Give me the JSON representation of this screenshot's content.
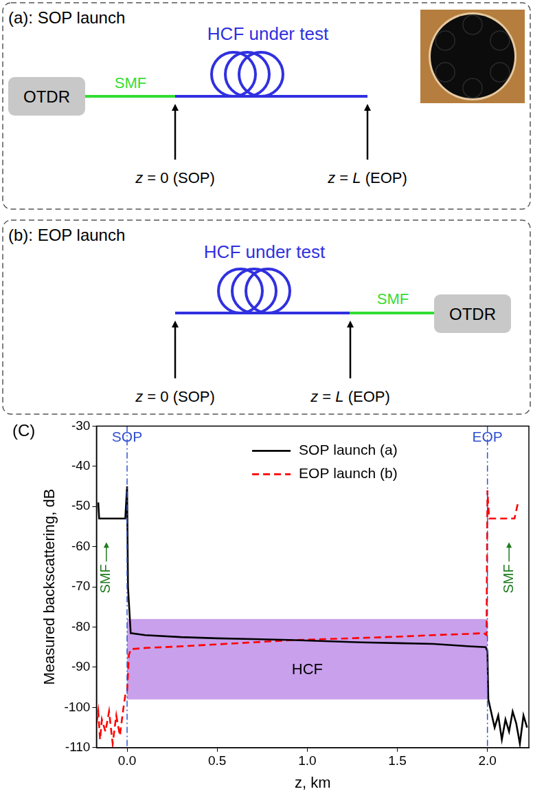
{
  "panels": [
    {
      "label": "(a): SOP launch",
      "device": "OTDR",
      "lead_fiber": "SMF",
      "fiber": "HCF under test",
      "start": "z = 0 (SOP)",
      "end": "z = L (EOP)"
    },
    {
      "label": "(b): EOP launch",
      "device": "OTDR",
      "lead_fiber": "SMF",
      "fiber": "HCF under test",
      "start": "z = 0 (SOP)",
      "end": "z = L (EOP)"
    }
  ],
  "chart_data": {
    "type": "line",
    "panel_label": "(C)",
    "x_label": "z, km",
    "y_label": "Measured backscattering, dB",
    "xlim": [
      -0.17,
      2.23
    ],
    "xticks": [
      {
        "value": 0,
        "label": "0.0"
      },
      0.5,
      {
        "value": 1,
        "label": "1.0"
      },
      1.5,
      {
        "value": 2,
        "label": "2.0"
      }
    ],
    "ylim": [
      -110,
      -30
    ],
    "yticks": [
      -110,
      -100,
      -90,
      -80,
      -70,
      -60,
      -50,
      -40,
      -30
    ],
    "grid": false,
    "legend": "upper center",
    "series": [
      {
        "name": "SOP launch (a)",
        "color": "#000000",
        "line_style": "solid",
        "x": [
          -0.16,
          -0.155,
          -0.15,
          -0.1,
          -0.05,
          -0.01,
          0.0,
          0.005,
          0.02,
          0.1,
          0.3,
          0.5,
          0.7,
          0.9,
          1.1,
          1.3,
          1.5,
          1.7,
          1.9,
          1.99,
          2.0,
          2.005,
          2.02,
          2.04,
          2.06,
          2.08,
          2.1,
          2.12,
          2.14,
          2.16,
          2.18,
          2.2,
          2.22
        ],
        "values": [
          -49,
          -53,
          -53,
          -53,
          -53,
          -53,
          -45,
          -70,
          -81.5,
          -82,
          -82.5,
          -82.8,
          -83,
          -83.2,
          -83.5,
          -83.8,
          -84,
          -84.2,
          -84.8,
          -85,
          -86,
          -98,
          -101,
          -105,
          -102,
          -108,
          -103,
          -106,
          -101,
          -104,
          -109,
          -102,
          -105
        ]
      },
      {
        "name": "EOP launch (b)",
        "color": "#ff0000",
        "line_style": "dashed",
        "x": [
          -0.17,
          -0.16,
          -0.15,
          -0.14,
          -0.12,
          -0.1,
          -0.08,
          -0.06,
          -0.04,
          -0.02,
          -0.01,
          0.0,
          0.01,
          0.02,
          0.1,
          0.3,
          0.5,
          0.7,
          0.9,
          1.1,
          1.3,
          1.5,
          1.7,
          1.9,
          1.98,
          1.995,
          2.0,
          2.005,
          2.01,
          2.05,
          2.1,
          2.14,
          2.15,
          2.17
        ],
        "values": [
          -104,
          -101,
          -108,
          -103,
          -106,
          -101,
          -109,
          -102,
          -107,
          -100,
          -97,
          -96,
          -87,
          -85.5,
          -85.2,
          -84.8,
          -84.3,
          -83.8,
          -83.3,
          -83,
          -82.7,
          -82.4,
          -82,
          -81.7,
          -81.5,
          -82,
          -46,
          -50,
          -53,
          -53,
          -53,
          -53,
          -53,
          -49
        ]
      }
    ],
    "annotations": [
      {
        "type": "region",
        "text": "HCF",
        "x": [
          0,
          2.0
        ],
        "y": [
          -98,
          -78
        ],
        "color": "#c9a0ec"
      },
      {
        "type": "vline",
        "text": "SOP",
        "x": 0,
        "color": "#3050d0"
      },
      {
        "type": "vline",
        "text": "EOP",
        "x": 2.0,
        "color": "#3050d0"
      },
      {
        "type": "arrow_label",
        "text": "SMF",
        "x": -0.115,
        "y": -68,
        "color": "#1f7a1f"
      },
      {
        "type": "arrow_label",
        "text": "SMF",
        "x": 2.12,
        "y": -68,
        "color": "#1f7a1f"
      }
    ]
  }
}
